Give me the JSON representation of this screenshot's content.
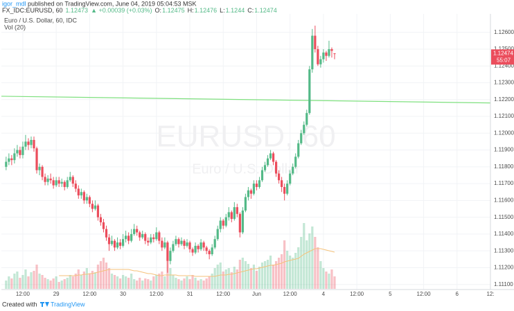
{
  "header": {
    "author": "igor_mdl",
    "published": "published on TradingView.com, June 04, 2019 05:04:53 MSK",
    "symbol": "FX_IDC:EURUSD, 60",
    "last": "1.12473",
    "change": "▲ +0.00039 (+0.03%)",
    "ohlc_labels": [
      "O:",
      "H:",
      "L:",
      "C:"
    ]
  },
  "footer": {
    "created": "Created with",
    "brand": "TradingView"
  },
  "chart_data": {
    "type": "candlestick",
    "legend": "Euro / U.S. Dollar, 60, IDC",
    "volume_legend": "Vol (20)",
    "watermark": "EURUSD, 60",
    "watermark_sub": "Euro / U.S. Dollar",
    "countdown": "55:07",
    "up_color": "#53b987",
    "down_color": "#eb4d5c",
    "ma_color": "#f5c27a",
    "xlim": [
      -1.7,
      174
    ],
    "ylim": [
      1.1107,
      1.1271
    ],
    "volume_lim": [
      0,
      100
    ],
    "grid": true,
    "xticks": [
      {
        "value": 6,
        "label": "12:00"
      },
      {
        "value": 18,
        "label": "29"
      },
      {
        "value": 30,
        "label": "12:00"
      },
      {
        "value": 42,
        "label": "30"
      },
      {
        "value": 54,
        "label": "12:00"
      },
      {
        "value": 66,
        "label": "31"
      },
      {
        "value": 78,
        "label": "12:00"
      },
      {
        "value": 90,
        "label": "Jun"
      },
      {
        "value": 102,
        "label": "12:00"
      },
      {
        "value": 114,
        "label": "4"
      },
      {
        "value": 126,
        "label": "12:00"
      },
      {
        "value": 138,
        "label": "5"
      },
      {
        "value": 150,
        "label": "12:00"
      },
      {
        "value": 162,
        "label": "6"
      },
      {
        "value": 174,
        "label": "12:"
      }
    ],
    "yticks": [
      {
        "value": 1.111,
        "label": "1.11100"
      },
      {
        "value": 1.112,
        "label": "1.11200"
      },
      {
        "value": 1.113,
        "label": "1.11300"
      },
      {
        "value": 1.114,
        "label": "1.11400"
      },
      {
        "value": 1.115,
        "label": "1.11500"
      },
      {
        "value": 1.116,
        "label": "1.11600"
      },
      {
        "value": 1.117,
        "label": "1.11700"
      },
      {
        "value": 1.118,
        "label": "1.11800"
      },
      {
        "value": 1.119,
        "label": "1.11900"
      },
      {
        "value": 1.12,
        "label": "1.12000"
      },
      {
        "value": 1.121,
        "label": "1.12100"
      },
      {
        "value": 1.122,
        "label": "1.12200"
      },
      {
        "value": 1.123,
        "label": "1.12300"
      },
      {
        "value": 1.124,
        "label": "1.12400"
      },
      {
        "value": 1.125,
        "label": "1.12500"
      },
      {
        "value": 1.126,
        "label": "1.12600"
      }
    ],
    "trendline": {
      "values": [
        1.1222,
        1.1218
      ],
      "color": "#7ee07e"
    },
    "ohlc": [
      [
        1.118,
        1.1186,
        1.1178,
        1.1183
      ],
      [
        1.1183,
        1.1188,
        1.1181,
        1.1185
      ],
      [
        1.1185,
        1.1187,
        1.1181,
        1.1184
      ],
      [
        1.1184,
        1.1191,
        1.1182,
        1.1188
      ],
      [
        1.1188,
        1.1193,
        1.1186,
        1.119
      ],
      [
        1.119,
        1.1192,
        1.1185,
        1.1187
      ],
      [
        1.1187,
        1.1195,
        1.1185,
        1.1192
      ],
      [
        1.1192,
        1.1199,
        1.119,
        1.1195
      ],
      [
        1.1195,
        1.1197,
        1.119,
        1.1193
      ],
      [
        1.1193,
        1.1198,
        1.1191,
        1.1196
      ],
      [
        1.1196,
        1.1198,
        1.1189,
        1.1191
      ],
      [
        1.1191,
        1.1192,
        1.1176,
        1.1178
      ],
      [
        1.1178,
        1.1182,
        1.1175,
        1.118
      ],
      [
        1.118,
        1.1181,
        1.1172,
        1.1174
      ],
      [
        1.1174,
        1.1176,
        1.1169,
        1.1171
      ],
      [
        1.1171,
        1.1175,
        1.1169,
        1.1173
      ],
      [
        1.1173,
        1.1176,
        1.117,
        1.1172
      ],
      [
        1.1172,
        1.1174,
        1.1167,
        1.1169
      ],
      [
        1.1169,
        1.1174,
        1.1168,
        1.1172
      ],
      [
        1.1172,
        1.1174,
        1.1168,
        1.117
      ],
      [
        1.117,
        1.1173,
        1.1168,
        1.1171
      ],
      [
        1.1171,
        1.1172,
        1.1166,
        1.1168
      ],
      [
        1.1168,
        1.1174,
        1.1167,
        1.1172
      ],
      [
        1.1172,
        1.1177,
        1.1171,
        1.1174
      ],
      [
        1.1174,
        1.1175,
        1.1168,
        1.117
      ],
      [
        1.117,
        1.1172,
        1.1165,
        1.1167
      ],
      [
        1.1167,
        1.1169,
        1.1161,
        1.1163
      ],
      [
        1.1163,
        1.1167,
        1.1161,
        1.1165
      ],
      [
        1.1165,
        1.1166,
        1.1158,
        1.116
      ],
      [
        1.116,
        1.1164,
        1.1158,
        1.1162
      ],
      [
        1.1162,
        1.1163,
        1.1156,
        1.1158
      ],
      [
        1.1158,
        1.116,
        1.1153,
        1.1155
      ],
      [
        1.1155,
        1.116,
        1.1154,
        1.1157
      ],
      [
        1.1157,
        1.1158,
        1.1148,
        1.115
      ],
      [
        1.115,
        1.1152,
        1.1145,
        1.1147
      ],
      [
        1.1147,
        1.1149,
        1.1141,
        1.1143
      ],
      [
        1.1143,
        1.1145,
        1.1136,
        1.1138
      ],
      [
        1.1138,
        1.114,
        1.113,
        1.1134
      ],
      [
        1.1134,
        1.1139,
        1.1133,
        1.1136
      ],
      [
        1.1136,
        1.1137,
        1.113,
        1.1132
      ],
      [
        1.1132,
        1.1138,
        1.1131,
        1.1135
      ],
      [
        1.1135,
        1.1137,
        1.1131,
        1.1133
      ],
      [
        1.1133,
        1.114,
        1.1132,
        1.1137
      ],
      [
        1.1137,
        1.1142,
        1.1135,
        1.1139
      ],
      [
        1.1139,
        1.1141,
        1.1134,
        1.1136
      ],
      [
        1.1136,
        1.1143,
        1.1135,
        1.114
      ],
      [
        1.114,
        1.1146,
        1.1139,
        1.1143
      ],
      [
        1.1143,
        1.1145,
        1.1139,
        1.1141
      ],
      [
        1.1141,
        1.1142,
        1.1136,
        1.1138
      ],
      [
        1.1138,
        1.1142,
        1.1137,
        1.114
      ],
      [
        1.114,
        1.1141,
        1.1134,
        1.1136
      ],
      [
        1.1136,
        1.1138,
        1.1133,
        1.1135
      ],
      [
        1.1135,
        1.114,
        1.1134,
        1.1138
      ],
      [
        1.1138,
        1.114,
        1.1135,
        1.1137
      ],
      [
        1.1137,
        1.1144,
        1.1136,
        1.1141
      ],
      [
        1.1141,
        1.1142,
        1.1134,
        1.1136
      ],
      [
        1.1136,
        1.1138,
        1.113,
        1.1132
      ],
      [
        1.1132,
        1.1138,
        1.1131,
        1.1135
      ],
      [
        1.1135,
        1.1136,
        1.1117,
        1.1124
      ],
      [
        1.1124,
        1.1132,
        1.1122,
        1.113
      ],
      [
        1.113,
        1.1136,
        1.1129,
        1.1134
      ],
      [
        1.1134,
        1.1139,
        1.1133,
        1.1137
      ],
      [
        1.1137,
        1.1138,
        1.1132,
        1.1134
      ],
      [
        1.1134,
        1.1138,
        1.1133,
        1.1136
      ],
      [
        1.1136,
        1.1137,
        1.1131,
        1.1133
      ],
      [
        1.1133,
        1.1137,
        1.1132,
        1.1135
      ],
      [
        1.1135,
        1.1136,
        1.1129,
        1.1131
      ],
      [
        1.1131,
        1.1132,
        1.1127,
        1.1129
      ],
      [
        1.1129,
        1.1135,
        1.1128,
        1.1133
      ],
      [
        1.1133,
        1.1134,
        1.1129,
        1.1131
      ],
      [
        1.1131,
        1.1137,
        1.113,
        1.1135
      ],
      [
        1.1135,
        1.1136,
        1.113,
        1.1132
      ],
      [
        1.1132,
        1.1133,
        1.1128,
        1.113
      ],
      [
        1.113,
        1.1131,
        1.1125,
        1.1128
      ],
      [
        1.1128,
        1.1134,
        1.1127,
        1.1132
      ],
      [
        1.1132,
        1.1139,
        1.1131,
        1.1137
      ],
      [
        1.1137,
        1.1145,
        1.1136,
        1.1143
      ],
      [
        1.1143,
        1.115,
        1.1141,
        1.1148
      ],
      [
        1.1148,
        1.1149,
        1.1143,
        1.1145
      ],
      [
        1.1145,
        1.1152,
        1.1144,
        1.115
      ],
      [
        1.115,
        1.1156,
        1.1148,
        1.1153
      ],
      [
        1.1153,
        1.1154,
        1.1147,
        1.1149
      ],
      [
        1.1149,
        1.1159,
        1.1148,
        1.1156
      ],
      [
        1.1156,
        1.1158,
        1.115,
        1.1152
      ],
      [
        1.1152,
        1.1153,
        1.1138,
        1.1141
      ],
      [
        1.1141,
        1.1156,
        1.114,
        1.1154
      ],
      [
        1.1154,
        1.1164,
        1.1153,
        1.1162
      ],
      [
        1.1162,
        1.1168,
        1.116,
        1.1166
      ],
      [
        1.1166,
        1.1167,
        1.1161,
        1.1164
      ],
      [
        1.1164,
        1.1172,
        1.1163,
        1.117
      ],
      [
        1.117,
        1.1172,
        1.1166,
        1.1168
      ],
      [
        1.1168,
        1.1174,
        1.1167,
        1.1172
      ],
      [
        1.1172,
        1.118,
        1.1171,
        1.1178
      ],
      [
        1.1178,
        1.1183,
        1.1177,
        1.1181
      ],
      [
        1.1181,
        1.1187,
        1.118,
        1.1185
      ],
      [
        1.1185,
        1.119,
        1.1184,
        1.1188
      ],
      [
        1.1188,
        1.1189,
        1.1181,
        1.1183
      ],
      [
        1.1183,
        1.1184,
        1.1174,
        1.1176
      ],
      [
        1.1176,
        1.1178,
        1.117,
        1.1172
      ],
      [
        1.1172,
        1.1174,
        1.1165,
        1.1168
      ],
      [
        1.1168,
        1.117,
        1.116,
        1.1164
      ],
      [
        1.1164,
        1.1172,
        1.1163,
        1.117
      ],
      [
        1.117,
        1.1178,
        1.1169,
        1.1176
      ],
      [
        1.1176,
        1.1182,
        1.1175,
        1.118
      ],
      [
        1.118,
        1.1188,
        1.1179,
        1.1186
      ],
      [
        1.1186,
        1.1196,
        1.1185,
        1.1194
      ],
      [
        1.1194,
        1.1202,
        1.1193,
        1.12
      ],
      [
        1.12,
        1.1207,
        1.1199,
        1.1205
      ],
      [
        1.1205,
        1.1214,
        1.1204,
        1.1212
      ],
      [
        1.1212,
        1.124,
        1.1211,
        1.1238
      ],
      [
        1.1238,
        1.1262,
        1.1236,
        1.1258
      ],
      [
        1.1258,
        1.1264,
        1.1248,
        1.125
      ],
      [
        1.125,
        1.1252,
        1.124,
        1.1241
      ],
      [
        1.1241,
        1.1246,
        1.1239,
        1.1244
      ],
      [
        1.1244,
        1.125,
        1.1242,
        1.1248
      ],
      [
        1.1248,
        1.1249,
        1.1243,
        1.1246
      ],
      [
        1.1246,
        1.1255,
        1.1245,
        1.125
      ],
      [
        1.125,
        1.1251,
        1.1245,
        1.1249
      ],
      [
        1.12475,
        1.12476,
        1.1244,
        1.12474
      ]
    ],
    "volume": [
      12,
      18,
      15,
      22,
      25,
      16,
      20,
      28,
      18,
      24,
      26,
      35,
      22,
      20,
      16,
      14,
      12,
      15,
      18,
      10,
      12,
      14,
      16,
      20,
      18,
      22,
      28,
      20,
      25,
      30,
      22,
      26,
      24,
      35,
      40,
      45,
      38,
      30,
      22,
      20,
      18,
      15,
      20,
      18,
      16,
      22,
      14,
      12,
      16,
      12,
      15,
      14,
      12,
      18,
      20,
      22,
      25,
      18,
      40,
      30,
      20,
      16,
      14,
      12,
      15,
      18,
      14,
      20,
      16,
      12,
      14,
      12,
      15,
      18,
      22,
      30,
      35,
      38,
      25,
      28,
      30,
      24,
      32,
      28,
      42,
      45,
      40,
      36,
      30,
      35,
      26,
      32,
      38,
      40,
      42,
      48,
      35,
      40,
      45,
      50,
      70,
      55,
      48,
      45,
      52,
      60,
      75,
      95,
      70,
      80,
      90,
      75,
      60,
      40,
      30,
      25,
      22,
      28,
      18
    ],
    "volume_ma": [
      null,
      null,
      null,
      null,
      null,
      null,
      null,
      null,
      null,
      null,
      null,
      null,
      null,
      null,
      null,
      null,
      null,
      null,
      null,
      19,
      19,
      19,
      19,
      19,
      19,
      19,
      20,
      20,
      21,
      21,
      22,
      22,
      23,
      24,
      25,
      26,
      27,
      28,
      28,
      28,
      28,
      28,
      28,
      28,
      28,
      27,
      26,
      26,
      25,
      24,
      23,
      22,
      22,
      21,
      20,
      19,
      19,
      20,
      20,
      20,
      20,
      20,
      19,
      19,
      19,
      19,
      19,
      19,
      18,
      18,
      18,
      18,
      18,
      18,
      18,
      18,
      19,
      20,
      20,
      20,
      21,
      21,
      22,
      23,
      24,
      25,
      26,
      27,
      28,
      29,
      29,
      30,
      31,
      32,
      33,
      34,
      34,
      35,
      36,
      37,
      39,
      40,
      41,
      42,
      43,
      44,
      47,
      50,
      52,
      54,
      56,
      58,
      58,
      58,
      57,
      56,
      55,
      54,
      53
    ]
  }
}
